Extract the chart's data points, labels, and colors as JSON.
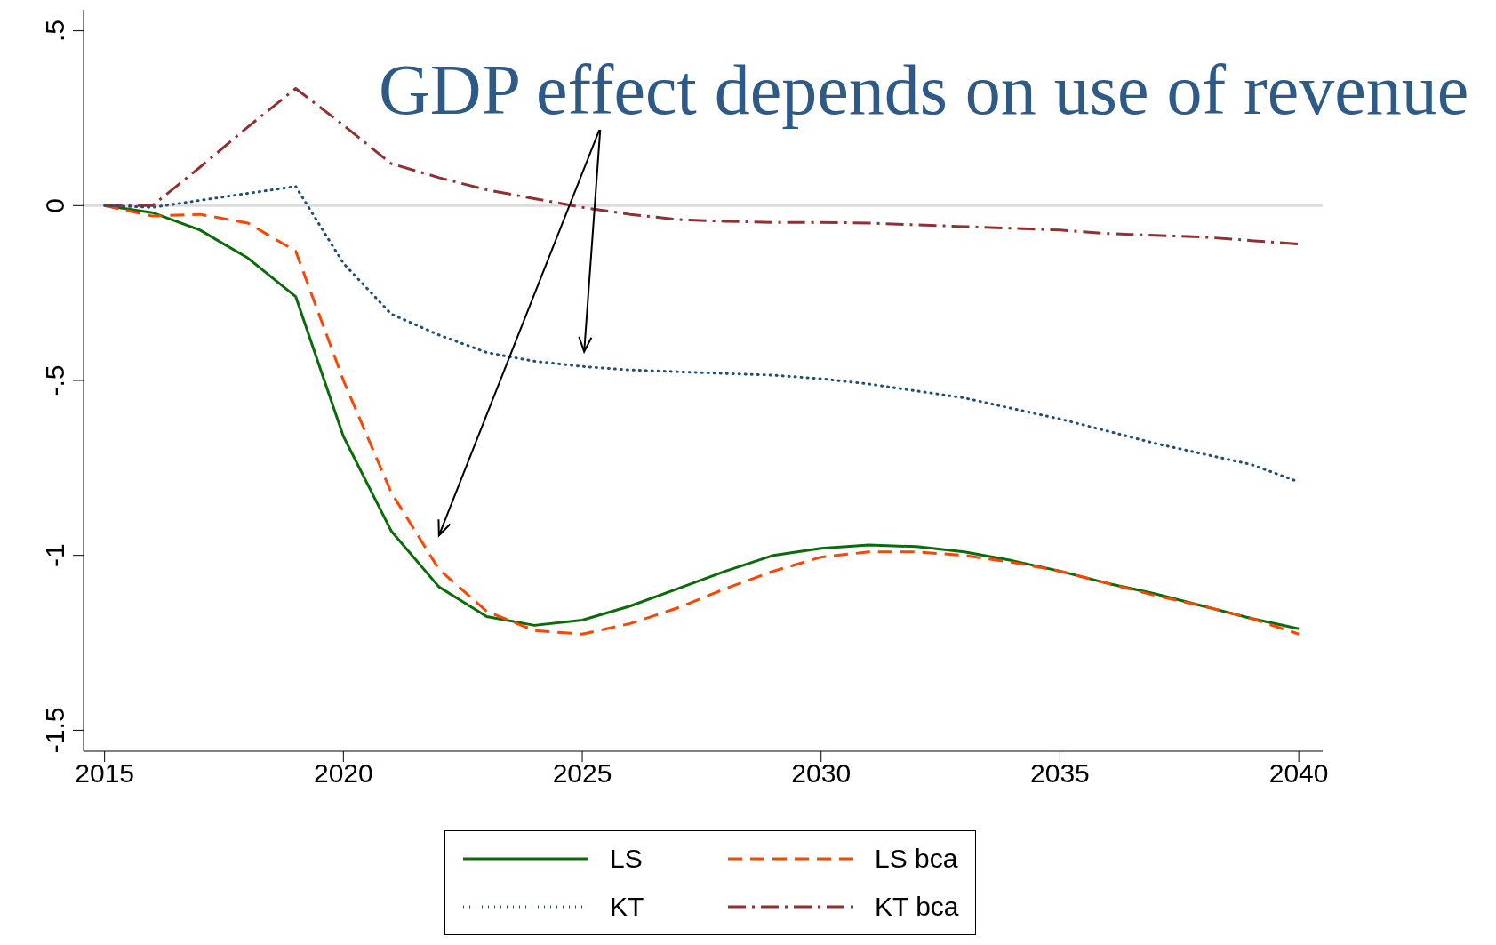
{
  "chart_data": {
    "type": "line",
    "annotations": [
      "GDP effect depends on use of revenue"
    ],
    "x": [
      2015,
      2016,
      2017,
      2018,
      2019,
      2020,
      2021,
      2022,
      2023,
      2024,
      2025,
      2026,
      2027,
      2028,
      2029,
      2030,
      2031,
      2032,
      2033,
      2034,
      2035,
      2036,
      2037,
      2038,
      2039,
      2040
    ],
    "series": [
      {
        "name": "LS",
        "color": "#0b6b0b",
        "line_style": "solid",
        "values": [
          0,
          -0.02,
          -0.07,
          -0.15,
          -0.26,
          -0.66,
          -0.93,
          -1.09,
          -1.175,
          -1.2,
          -1.185,
          -1.145,
          -1.095,
          -1.045,
          -1.0,
          -0.98,
          -0.97,
          -0.975,
          -0.99,
          -1.015,
          -1.045,
          -1.08,
          -1.11,
          -1.145,
          -1.18,
          -1.21
        ]
      },
      {
        "name": "LS bca",
        "color": "#ff4500",
        "line_style": "dashed",
        "values": [
          0,
          -0.03,
          -0.025,
          -0.05,
          -0.13,
          -0.5,
          -0.82,
          -1.04,
          -1.16,
          -1.215,
          -1.225,
          -1.195,
          -1.15,
          -1.095,
          -1.045,
          -1.005,
          -0.99,
          -0.99,
          -1.0,
          -1.02,
          -1.045,
          -1.08,
          -1.115,
          -1.145,
          -1.18,
          -1.225
        ]
      },
      {
        "name": "KT",
        "color": "#1f4e79",
        "line_style": "dotted",
        "values": [
          0,
          -0.005,
          0.015,
          0.035,
          0.055,
          -0.165,
          -0.31,
          -0.37,
          -0.42,
          -0.445,
          -0.46,
          -0.47,
          -0.475,
          -0.48,
          -0.485,
          -0.495,
          -0.51,
          -0.53,
          -0.55,
          -0.58,
          -0.61,
          -0.645,
          -0.68,
          -0.71,
          -0.74,
          -0.79
        ]
      },
      {
        "name": "KT bca",
        "color": "#903030",
        "line_style": "dashdot",
        "values": [
          0,
          0.0,
          0.11,
          0.225,
          0.335,
          0.23,
          0.12,
          0.08,
          0.045,
          0.02,
          -0.005,
          -0.025,
          -0.04,
          -0.045,
          -0.048,
          -0.048,
          -0.05,
          -0.055,
          -0.06,
          -0.065,
          -0.07,
          -0.08,
          -0.085,
          -0.09,
          -0.1,
          -0.11
        ]
      }
    ],
    "xlim": [
      2014.56,
      2040.5
    ],
    "xticks": [
      2015,
      2020,
      2025,
      2030,
      2035,
      2040
    ],
    "ylim": [
      -1.56,
      0.56
    ],
    "yticks": [
      {
        "value": -1.5,
        "label": "-1.5"
      },
      {
        "value": -1,
        "label": "-1"
      },
      {
        "value": -0.5,
        "label": "-.5"
      },
      {
        "value": 0,
        "label": "0"
      },
      {
        "value": 0.5,
        "label": ".5"
      }
    ],
    "ref_lines": [
      {
        "axis": "y",
        "value": 0,
        "color": "#dcdcdc"
      }
    ],
    "legend": "bottom",
    "grid": false,
    "marker": "none"
  }
}
